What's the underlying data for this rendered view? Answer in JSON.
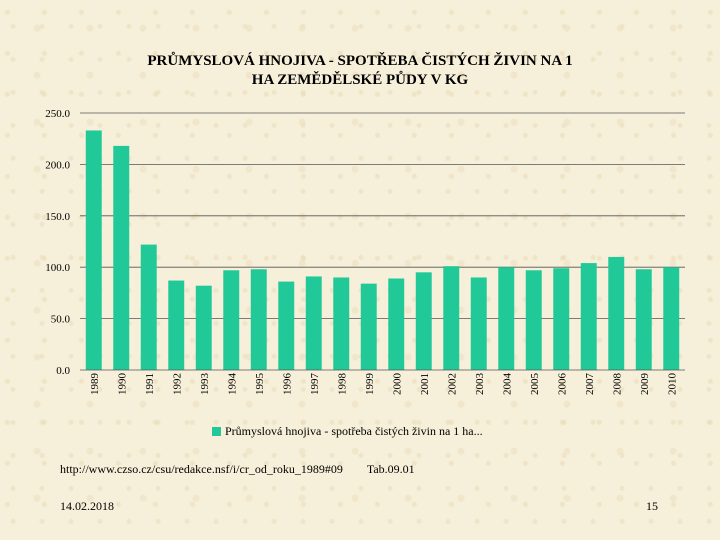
{
  "title_line1": "PRŮMYSLOVÁ HNOJIVA - SPOTŘEBA ČISTÝCH ŽIVIN NA 1",
  "title_line2": "HA ZEMĚDĚLSKÉ PŮDY V KG",
  "source_url": "http://www.czso.cz/csu/redakce.nsf/i/cr_od_roku_1989#09",
  "source_table": "Tab.09.01",
  "date": "14.02.2018",
  "page_number": "15",
  "chart_data": {
    "type": "bar",
    "title": "PRŮMYSLOVÁ HNOJIVA - SPOTŘEBA ČISTÝCH ŽIVIN NA 1 HA ZEMĚDĚLSKÉ PŮDY V KG",
    "categories": [
      "1989",
      "1990",
      "1991",
      "1992",
      "1993",
      "1994",
      "1995",
      "1996",
      "1997",
      "1998",
      "1999",
      "2000",
      "2001",
      "2002",
      "2003",
      "2004",
      "2005",
      "2006",
      "2007",
      "2008",
      "2009",
      "2010"
    ],
    "series": [
      {
        "name": "Průmyslová hnojiva - spotřeba čistých živin na 1 ha...",
        "values": [
          233,
          218,
          122,
          87,
          82,
          97,
          98,
          86,
          91,
          90,
          84,
          89,
          95,
          101,
          90,
          100,
          97,
          99,
          104,
          110,
          98,
          100
        ]
      }
    ],
    "color": "#20c997",
    "ylim": [
      0,
      250
    ],
    "yticks": [
      "0.0",
      "50.0",
      "100.0",
      "150.0",
      "200.0",
      "250.0"
    ],
    "grid": true,
    "legend_position": "bottom"
  }
}
